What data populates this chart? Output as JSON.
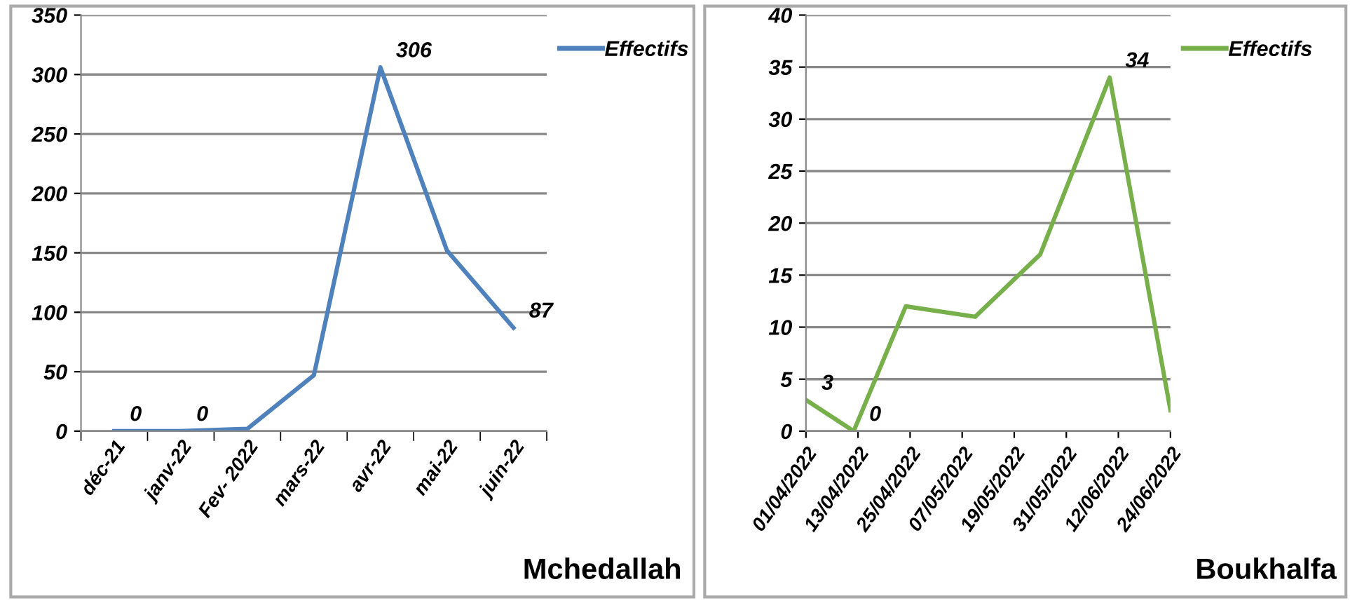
{
  "chart_data": [
    {
      "type": "line",
      "categories": [
        "déc-21",
        "janv-22",
        "Fev- 2022",
        "mars-22",
        "avr-22",
        "mai-22",
        "juin-22"
      ],
      "series": [
        {
          "name": "Effectifs",
          "color": "#4f81bd",
          "values": [
            0,
            0,
            2,
            47,
            306,
            152,
            87
          ],
          "value_labels": [
            "0",
            "0",
            null,
            null,
            "306",
            null,
            "87"
          ]
        }
      ],
      "ylim": [
        0,
        350
      ],
      "yticks": [
        0,
        50,
        100,
        150,
        200,
        250,
        300,
        350
      ],
      "grid": "y",
      "legend": "top right",
      "marker": "none",
      "line_style": "solid",
      "annotations": [
        "Mchedallah"
      ]
    },
    {
      "type": "line",
      "x": [
        "2022-04-01",
        "2022-04-12",
        "2022-04-24",
        "2022-05-10",
        "2022-05-25",
        "2022-06-10",
        "2022-06-24"
      ],
      "series": [
        {
          "name": "Effectifs",
          "color": "#77b04a",
          "values": [
            3,
            0,
            12,
            11,
            17,
            34,
            2
          ],
          "value_labels": [
            "3",
            "0",
            null,
            null,
            null,
            "34",
            null
          ]
        }
      ],
      "xlim": [
        "2022-04-01",
        "2022-06-24"
      ],
      "xticks": [
        {
          "value": "2022-04-01",
          "label": "01/04/2022"
        },
        {
          "value": "2022-04-13",
          "label": "13/04/2022"
        },
        {
          "value": "2022-04-25",
          "label": "25/04/2022"
        },
        {
          "value": "2022-05-07",
          "label": "07/05/2022"
        },
        {
          "value": "2022-05-19",
          "label": "19/05/2022"
        },
        {
          "value": "2022-05-31",
          "label": "31/05/2022"
        },
        {
          "value": "2022-06-12",
          "label": "12/06/2022"
        },
        {
          "value": "2022-06-24",
          "label": "24/06/2022"
        }
      ],
      "ylim": [
        0,
        40
      ],
      "yticks": [
        0,
        5,
        10,
        15,
        20,
        25,
        30,
        35,
        40
      ],
      "grid": "y",
      "legend": "top right",
      "marker": "none",
      "line_style": "solid",
      "annotations": [
        "Boukhalfa"
      ]
    }
  ]
}
